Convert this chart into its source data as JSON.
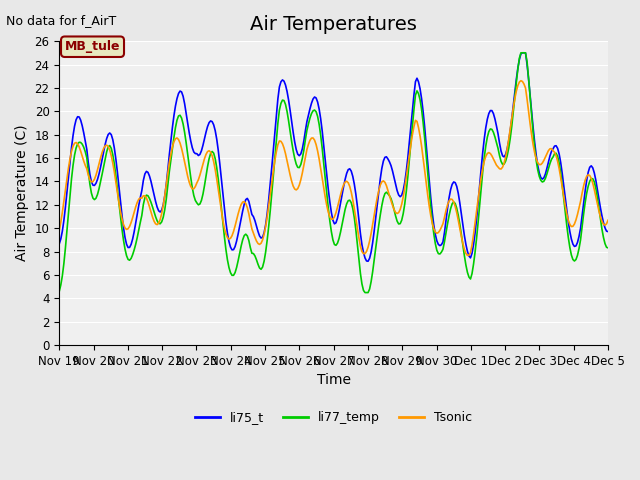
{
  "title": "Air Temperatures",
  "subtitle": "No data for f_AirT",
  "ylabel": "Air Temperature (C)",
  "xlabel": "Time",
  "ylim": [
    0,
    26
  ],
  "yticks": [
    0,
    2,
    4,
    6,
    8,
    10,
    12,
    14,
    16,
    18,
    20,
    22,
    24,
    26
  ],
  "bg_color": "#e8e8e8",
  "plot_bg": "#f0f0f0",
  "legend_label": "MB_tule",
  "legend_box_color": "#e8e8c0",
  "legend_box_edge": "#8b0000",
  "series_labels": [
    "li75_t",
    "li77_temp",
    "Tsonic"
  ],
  "series_colors": [
    "#0000ff",
    "#00cc00",
    "#ff9900"
  ],
  "line_width": 1.2,
  "title_fontsize": 14,
  "label_fontsize": 10,
  "tick_fontsize": 8.5,
  "start_day": 19,
  "end_day": 36,
  "num_points": 360
}
